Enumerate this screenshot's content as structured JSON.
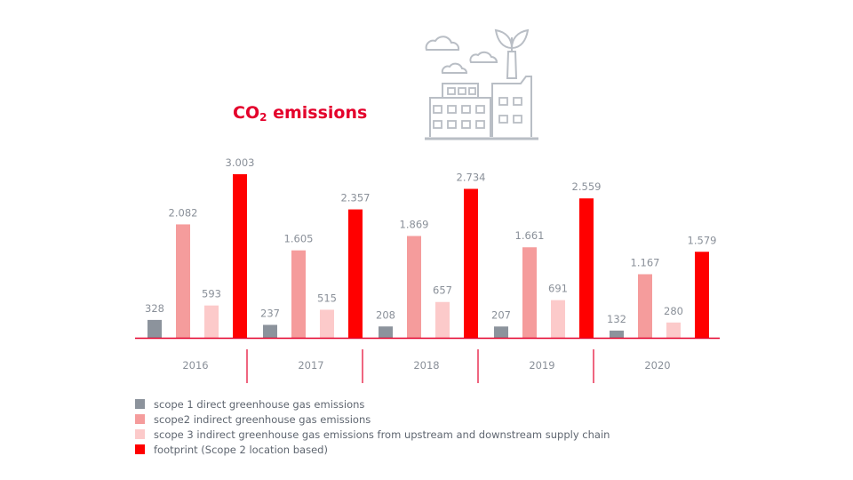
{
  "title": {
    "main": "CO",
    "sub": "2",
    "rest": " emissions"
  },
  "chart_data": {
    "type": "bar",
    "categories": [
      "2016",
      "2017",
      "2018",
      "2019",
      "2020"
    ],
    "series": [
      {
        "name": "scope 1 direct greenhouse gas emissions",
        "color": "#8c939c",
        "values": [
          328,
          237,
          208,
          207,
          132
        ],
        "labels": [
          "328",
          "237",
          "208",
          "207",
          "132"
        ]
      },
      {
        "name": "scope2  indirect greenhouse gas emissions",
        "color": "#f59c9c",
        "values": [
          2082,
          1605,
          1869,
          1661,
          1167
        ],
        "labels": [
          "2.082",
          "1.605",
          "1.869",
          "1.661",
          "1.167"
        ]
      },
      {
        "name": "scope 3 indirect greenhouse gas emissions from upstream and downstream supply chain",
        "color": "#fccaca",
        "values": [
          593,
          515,
          657,
          691,
          280
        ],
        "labels": [
          "593",
          "515",
          "657",
          "691",
          "280"
        ]
      },
      {
        "name": "footprint (Scope 2 location based)",
        "color": "#ff0000",
        "values": [
          3003,
          2357,
          2734,
          2559,
          1579
        ],
        "labels": [
          "3.003",
          "2.357",
          "2.734",
          "2.559",
          "1.579"
        ]
      }
    ],
    "ylim": [
      0,
      3003
    ],
    "grid": false,
    "legend": "bottom-left",
    "axis_color": "#e4002b",
    "label_color": "#8a9099"
  },
  "decor": {
    "icon": "factory-icon",
    "line_color": "#b9bec5"
  }
}
